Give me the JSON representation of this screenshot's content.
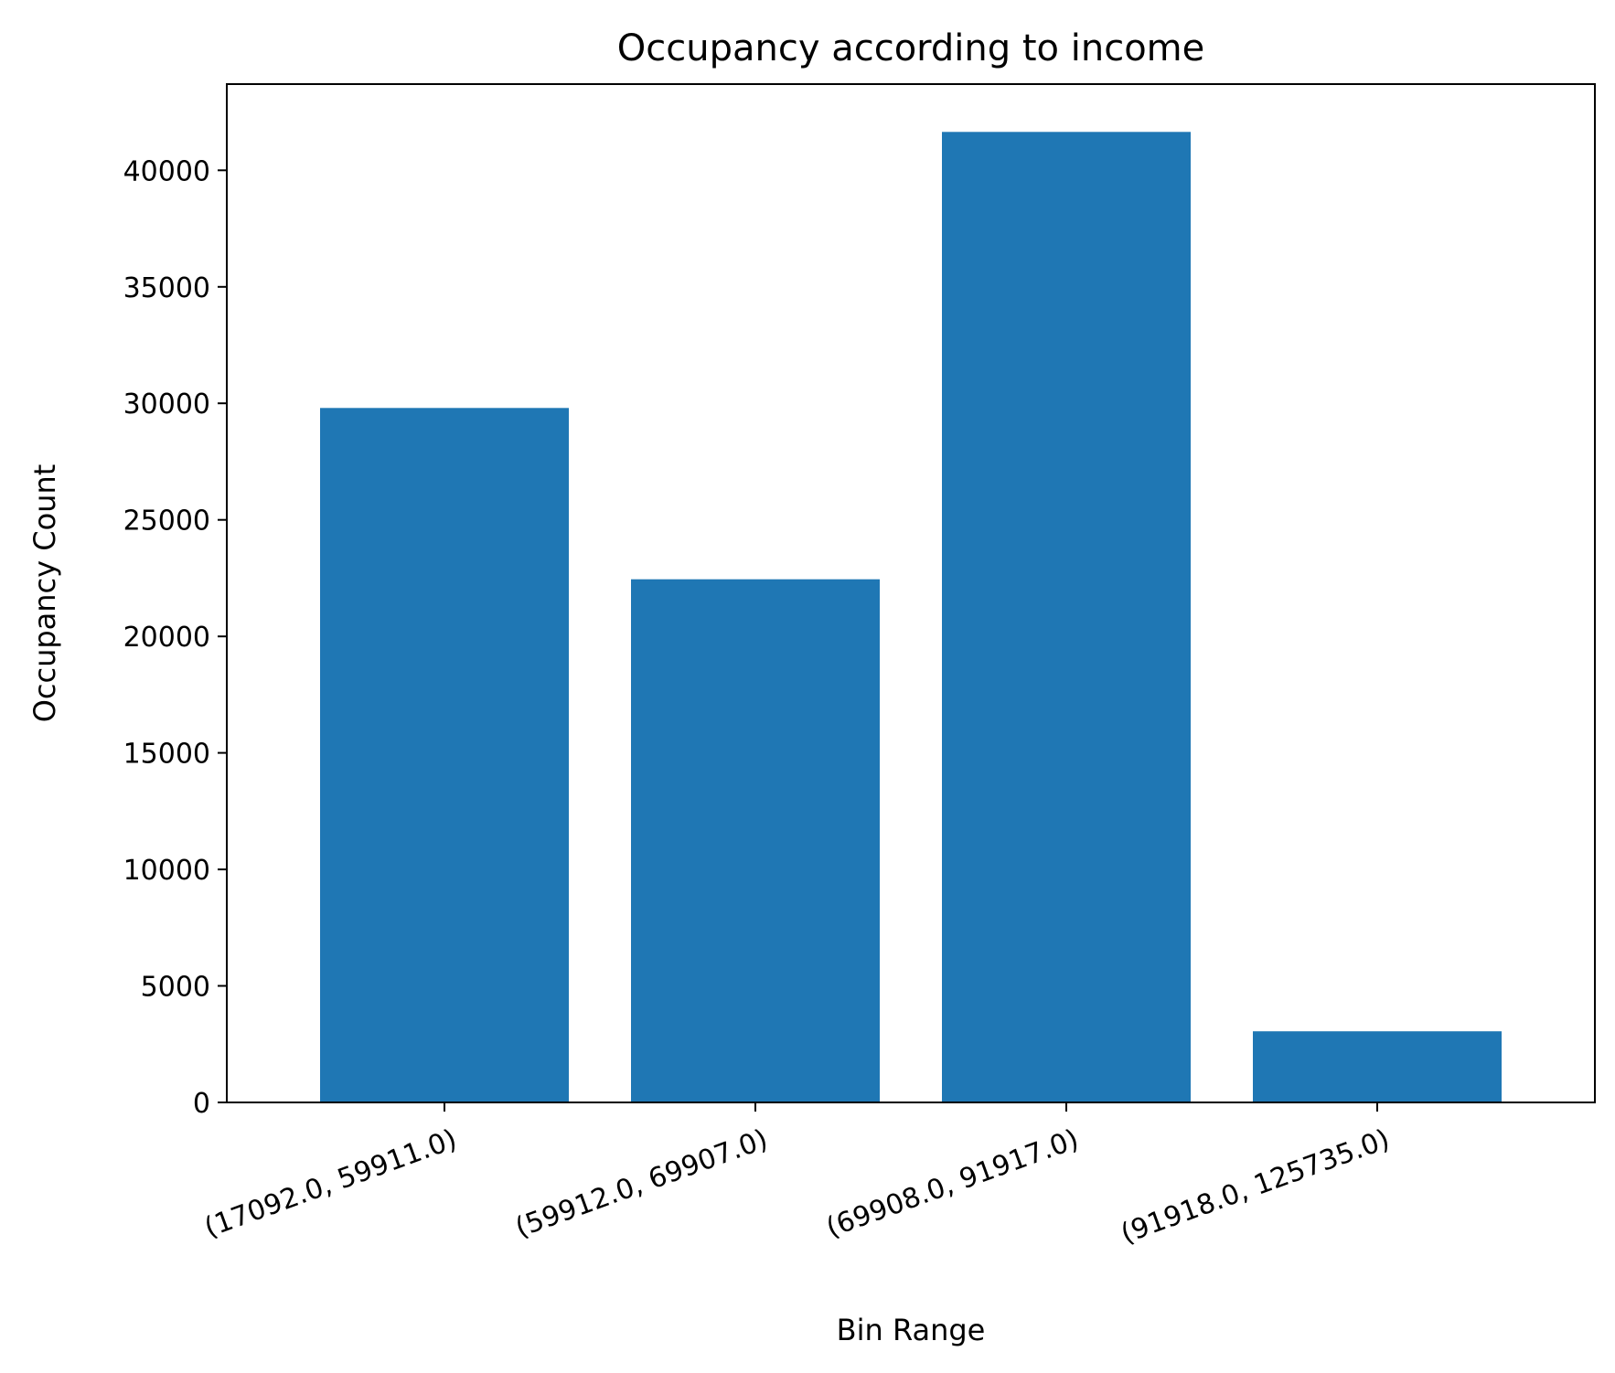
{
  "chart_data": {
    "type": "bar",
    "title": "Occupancy according to income",
    "xlabel": "Bin Range",
    "ylabel": "Occupancy Count",
    "categories": [
      "(17092.0, 59911.0)",
      "(59912.0, 69907.0)",
      "(69908.0, 91917.0)",
      "(91918.0, 125735.0)"
    ],
    "values": [
      29800,
      22450,
      41650,
      3050
    ],
    "ylim": [
      0,
      43700
    ],
    "yticks": [
      0,
      5000,
      10000,
      15000,
      20000,
      25000,
      30000,
      35000,
      40000
    ],
    "ytick_labels": [
      "0",
      "5000",
      "10000",
      "15000",
      "20000",
      "25000",
      "30000",
      "35000",
      "40000"
    ],
    "grid": false,
    "legend": "none",
    "xtick_rotation_deg": 20
  },
  "colors": {
    "bar": "#1f77b4",
    "axes": "#000000",
    "background": "#ffffff"
  }
}
